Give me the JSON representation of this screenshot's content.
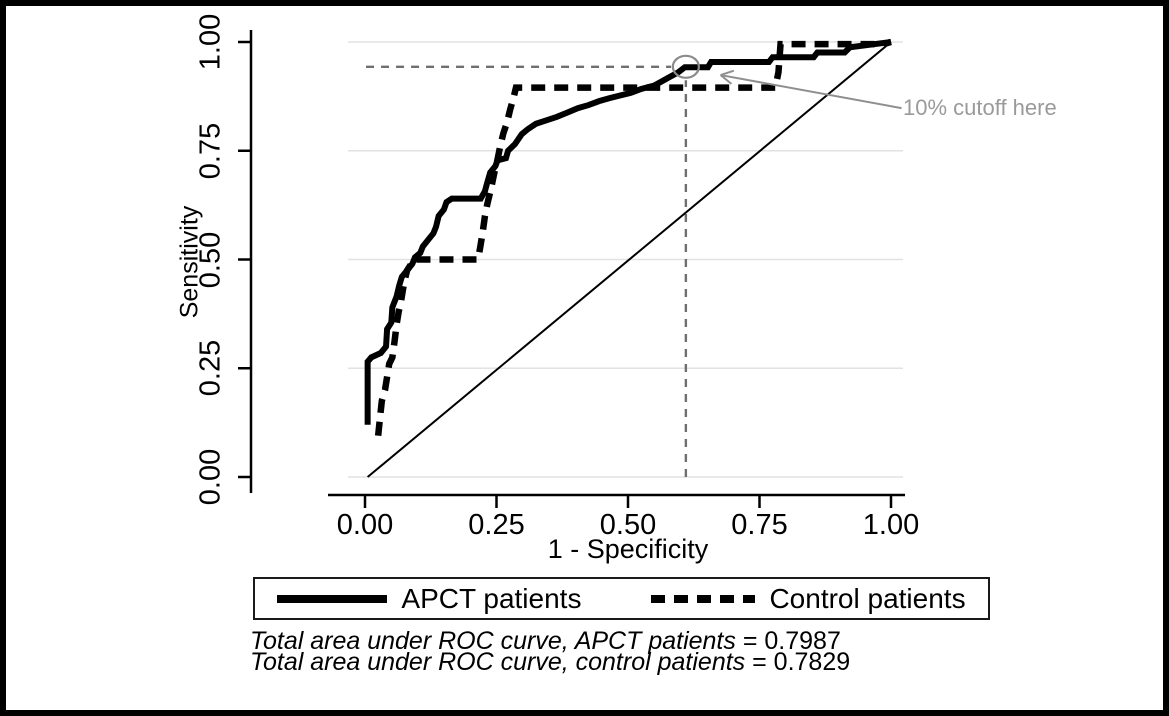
{
  "figure": {
    "background": "#ffffff",
    "border_color": "#000000"
  },
  "chart_data": {
    "type": "line",
    "subtype": "roc-curves",
    "title": "",
    "xlabel": "1 - Specificity",
    "ylabel": "Sensitivity",
    "xlim": [
      0,
      1
    ],
    "ylim": [
      0,
      1
    ],
    "grid": "horizontal",
    "grid_color": "#e2e2e2",
    "x_ticks": [
      {
        "label": "0.00",
        "value": 0
      },
      {
        "label": "0.25",
        "value": 0.25
      },
      {
        "label": "0.50",
        "value": 0.5
      },
      {
        "label": "0.75",
        "value": 0.75
      },
      {
        "label": "1.00",
        "value": 1
      }
    ],
    "y_ticks": [
      {
        "label": "0.00",
        "value": 0
      },
      {
        "label": "0.25",
        "value": 0.25
      },
      {
        "label": "0.50",
        "value": 0.5
      },
      {
        "label": "0.75",
        "value": 0.75
      },
      {
        "label": "1.00",
        "value": 1
      }
    ],
    "series": [
      {
        "name": "APCT patients",
        "style": "solid",
        "color": "#000000",
        "width": 6,
        "points": [
          [
            0.005,
            0.12
          ],
          [
            0.005,
            0.265
          ],
          [
            0.012,
            0.275
          ],
          [
            0.03,
            0.285
          ],
          [
            0.04,
            0.3
          ],
          [
            0.042,
            0.34
          ],
          [
            0.05,
            0.355
          ],
          [
            0.052,
            0.39
          ],
          [
            0.06,
            0.415
          ],
          [
            0.065,
            0.44
          ],
          [
            0.07,
            0.46
          ],
          [
            0.08,
            0.475
          ],
          [
            0.09,
            0.49
          ],
          [
            0.095,
            0.505
          ],
          [
            0.105,
            0.515
          ],
          [
            0.11,
            0.53
          ],
          [
            0.12,
            0.545
          ],
          [
            0.13,
            0.56
          ],
          [
            0.135,
            0.575
          ],
          [
            0.14,
            0.6
          ],
          [
            0.15,
            0.615
          ],
          [
            0.155,
            0.632
          ],
          [
            0.165,
            0.64
          ],
          [
            0.22,
            0.64
          ],
          [
            0.228,
            0.657
          ],
          [
            0.232,
            0.675
          ],
          [
            0.238,
            0.7
          ],
          [
            0.248,
            0.715
          ],
          [
            0.252,
            0.728
          ],
          [
            0.268,
            0.733
          ],
          [
            0.272,
            0.75
          ],
          [
            0.285,
            0.765
          ],
          [
            0.298,
            0.788
          ],
          [
            0.31,
            0.8
          ],
          [
            0.325,
            0.812
          ],
          [
            0.345,
            0.82
          ],
          [
            0.365,
            0.828
          ],
          [
            0.385,
            0.838
          ],
          [
            0.405,
            0.848
          ],
          [
            0.425,
            0.855
          ],
          [
            0.445,
            0.864
          ],
          [
            0.465,
            0.871
          ],
          [
            0.485,
            0.877
          ],
          [
            0.505,
            0.883
          ],
          [
            0.525,
            0.892
          ],
          [
            0.55,
            0.9
          ],
          [
            0.565,
            0.91
          ],
          [
            0.58,
            0.92
          ],
          [
            0.595,
            0.93
          ],
          [
            0.608,
            0.942
          ],
          [
            0.652,
            0.942
          ],
          [
            0.658,
            0.954
          ],
          [
            0.768,
            0.954
          ],
          [
            0.775,
            0.965
          ],
          [
            0.853,
            0.965
          ],
          [
            0.86,
            0.976
          ],
          [
            0.912,
            0.976
          ],
          [
            0.922,
            0.988
          ],
          [
            0.955,
            0.993
          ],
          [
            1.0,
            1.0
          ]
        ]
      },
      {
        "name": "Control patients",
        "style": "dashed",
        "color": "#000000",
        "width": 6.5,
        "dash": "14 9",
        "points": [
          [
            0.025,
            0.095
          ],
          [
            0.028,
            0.13
          ],
          [
            0.032,
            0.175
          ],
          [
            0.038,
            0.2
          ],
          [
            0.042,
            0.23
          ],
          [
            0.046,
            0.26
          ],
          [
            0.052,
            0.275
          ],
          [
            0.056,
            0.31
          ],
          [
            0.06,
            0.35
          ],
          [
            0.064,
            0.38
          ],
          [
            0.068,
            0.4
          ],
          [
            0.072,
            0.43
          ],
          [
            0.076,
            0.455
          ],
          [
            0.08,
            0.475
          ],
          [
            0.088,
            0.49
          ],
          [
            0.092,
            0.5
          ],
          [
            0.215,
            0.5
          ],
          [
            0.22,
            0.535
          ],
          [
            0.224,
            0.565
          ],
          [
            0.228,
            0.6
          ],
          [
            0.233,
            0.63
          ],
          [
            0.24,
            0.665
          ],
          [
            0.246,
            0.7
          ],
          [
            0.252,
            0.73
          ],
          [
            0.257,
            0.76
          ],
          [
            0.263,
            0.79
          ],
          [
            0.27,
            0.815
          ],
          [
            0.276,
            0.845
          ],
          [
            0.282,
            0.87
          ],
          [
            0.287,
            0.895
          ],
          [
            0.78,
            0.895
          ],
          [
            0.786,
            0.93
          ],
          [
            0.79,
            0.995
          ],
          [
            0.985,
            0.995
          ],
          [
            1.0,
            1.0
          ]
        ]
      },
      {
        "name": "reference-diagonal",
        "style": "solid",
        "color": "#000000",
        "width": 2,
        "points": [
          [
            0.005,
            0.0
          ],
          [
            1.0,
            1.0
          ]
        ]
      }
    ],
    "annotations": {
      "cutoff_label": "10% cutoff here",
      "cutoff_point": [
        0.61,
        0.943
      ],
      "hline": {
        "y": 0.943,
        "x_from": 0.002,
        "x_to": 0.582
      },
      "vline": {
        "x": 0.61,
        "y_from": 0.0,
        "y_to": 0.912
      },
      "arrow_from": [
        1.02,
        0.848
      ],
      "arrow_to": [
        0.676,
        0.924
      ],
      "marker_color": "#8a8a8a",
      "line_color": "#6f6f6f",
      "arrow_color": "#8f8f8f",
      "text_color": "#9a9a9a"
    },
    "legend": [
      {
        "label": "APCT patients",
        "style": "solid"
      },
      {
        "label": "Control patients",
        "style": "dashed"
      }
    ],
    "footnotes": [
      {
        "label": "Total area under ROC curve, APCT patients",
        "value": "= 0.7987"
      },
      {
        "label": "Total area under ROC curve, control patients",
        "value": "= 0.7829"
      }
    ]
  }
}
